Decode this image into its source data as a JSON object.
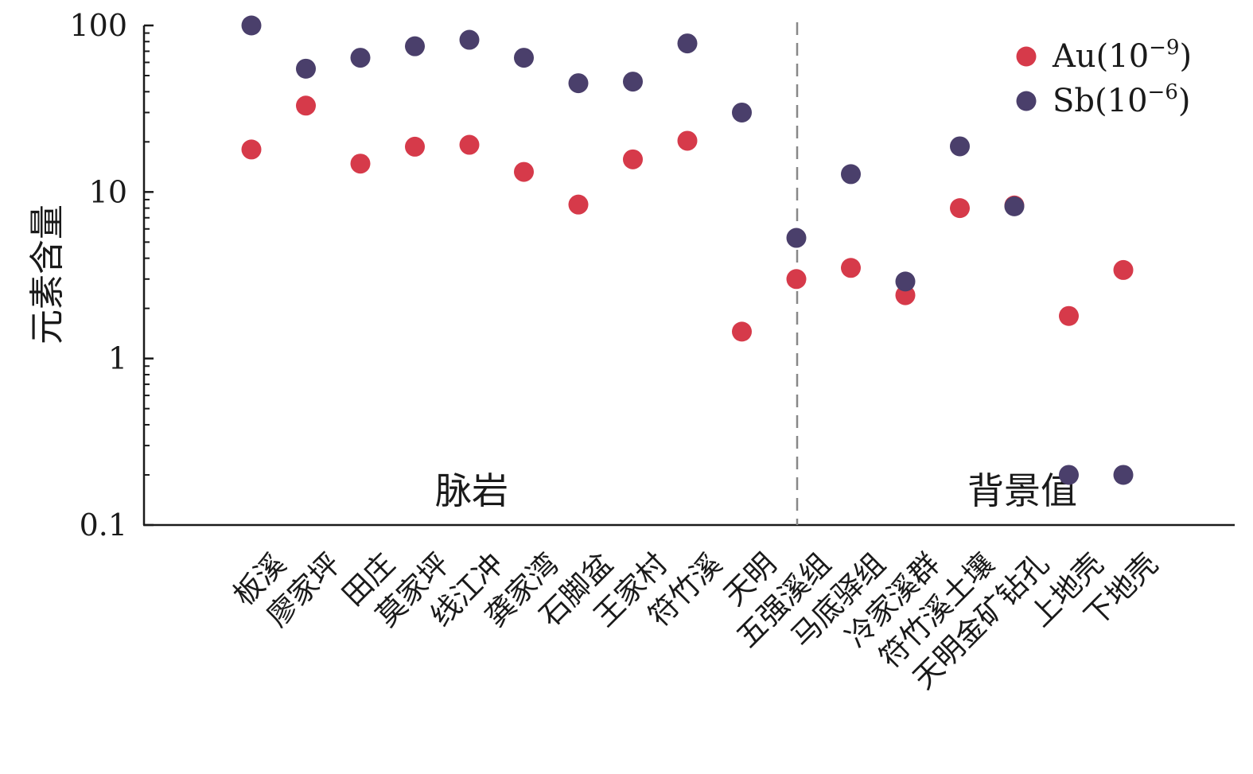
{
  "chart_data": {
    "type": "scatter",
    "ylabel": "元素含量",
    "yscale": "log",
    "ylim": [
      0.1,
      100
    ],
    "y_ticks": [
      "0.1",
      "1",
      "10",
      "100"
    ],
    "categories": [
      "板溪",
      "廖家坪",
      "田庄",
      "莫家坪",
      "线江冲",
      "龚家湾",
      "石脚盆",
      "王家村",
      "符竹溪",
      "天明",
      "五强溪组",
      "马底驿组",
      "冷家溪群",
      "符竹溪土壤",
      "天明金矿钻孔",
      "上地壳",
      "下地壳"
    ],
    "groups": [
      {
        "label": "脉岩",
        "from": 0,
        "to": 9
      },
      {
        "label": "背景值",
        "from": 10,
        "to": 16
      }
    ],
    "legend_position": "top-right",
    "series": [
      {
        "name": "Au",
        "unit_exponent": "−9",
        "color": "#d63a4a",
        "values": [
          18,
          33,
          14.8,
          18.7,
          19.2,
          13.2,
          8.4,
          15.7,
          20.3,
          1.45,
          3.0,
          3.5,
          2.4,
          8.0,
          8.3,
          1.8,
          3.4
        ]
      },
      {
        "name": "Sb",
        "unit_exponent": "−6",
        "color": "#4a3f6b",
        "values": [
          100,
          55,
          64,
          75,
          82,
          64,
          45,
          46,
          78,
          30,
          5.3,
          12.8,
          2.9,
          18.8,
          8.2,
          0.2,
          0.2
        ]
      }
    ]
  }
}
